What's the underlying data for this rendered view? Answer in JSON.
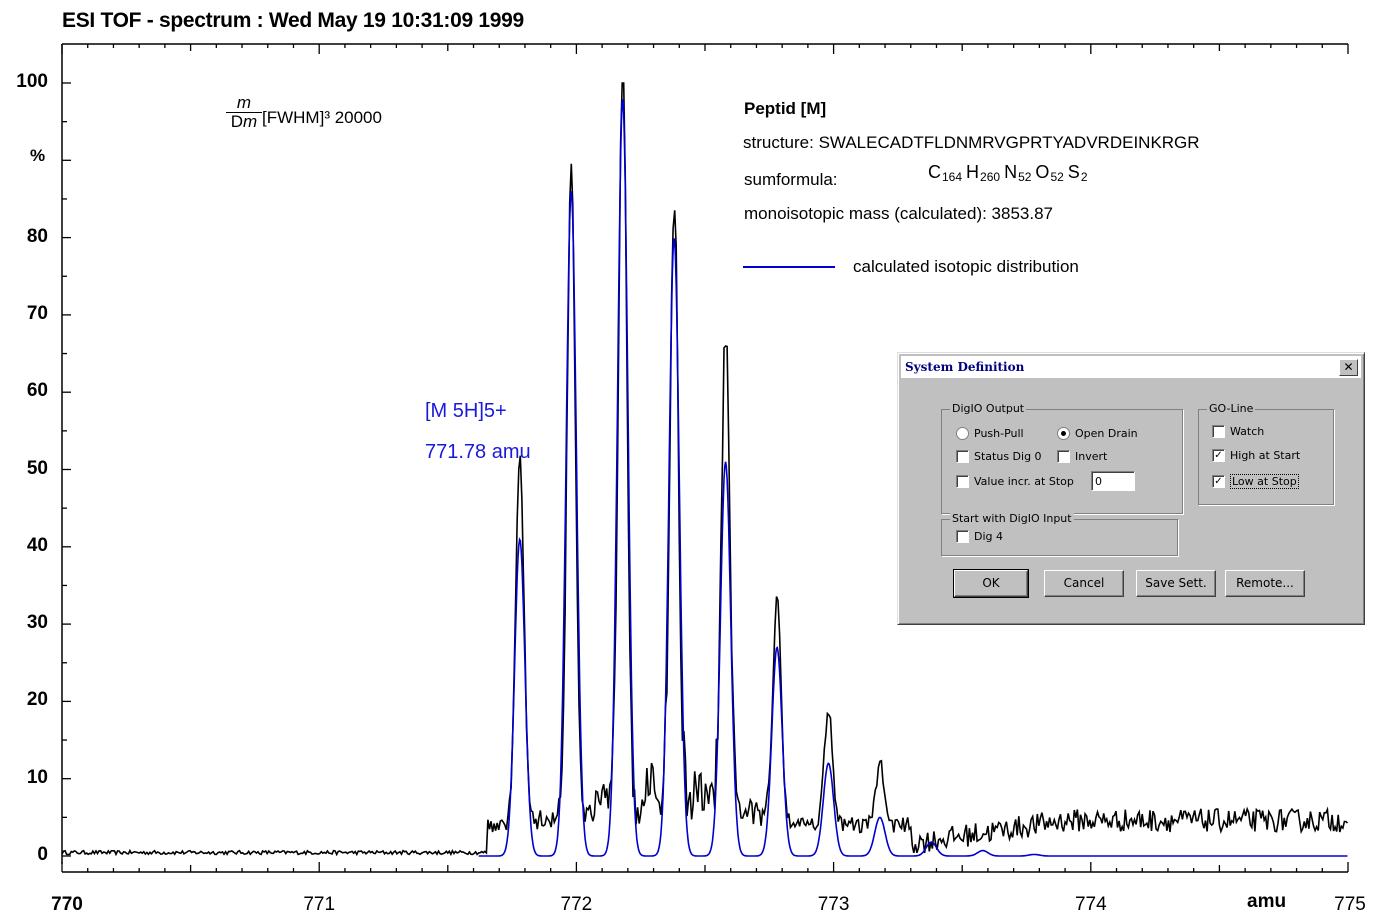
{
  "chart_data": {
    "type": "line",
    "title": "ESI TOF - spectrum :  Wed May 19 10:31:09 1999",
    "xlabel": "amu",
    "ylabel": "%",
    "xlim": [
      770,
      775
    ],
    "ylim": [
      0,
      100
    ],
    "x_ticks": [
      "770",
      "771",
      "772",
      "773",
      "774",
      "775"
    ],
    "y_ticks": [
      "0",
      "10",
      "20",
      "30",
      "40",
      "50",
      "60",
      "70",
      "80",
      "90",
      "100"
    ],
    "series": [
      {
        "role": "measured",
        "color": "#000000",
        "peaks": [
          {
            "x": 771.78,
            "y": 48
          },
          {
            "x": 771.98,
            "y": 85
          },
          {
            "x": 772.18,
            "y": 100
          },
          {
            "x": 772.38,
            "y": 77
          },
          {
            "x": 772.58,
            "y": 61
          },
          {
            "x": 772.78,
            "y": 29
          },
          {
            "x": 772.98,
            "y": 15
          },
          {
            "x": 773.18,
            "y": 8
          }
        ],
        "baseline_low": 0.5,
        "baseline_high": 4
      },
      {
        "name": "calculated isotopic distribution",
        "color": "#0000d0",
        "peaks": [
          {
            "x": 771.78,
            "y": 41
          },
          {
            "x": 771.98,
            "y": 86
          },
          {
            "x": 772.18,
            "y": 98
          },
          {
            "x": 772.38,
            "y": 80
          },
          {
            "x": 772.58,
            "y": 51
          },
          {
            "x": 772.78,
            "y": 27
          },
          {
            "x": 772.98,
            "y": 12
          },
          {
            "x": 773.18,
            "y": 5
          },
          {
            "x": 773.38,
            "y": 1.8
          },
          {
            "x": 773.58,
            "y": 0.7
          },
          {
            "x": 773.78,
            "y": 0.2
          }
        ]
      }
    ],
    "annotations": {
      "ion": "[M 5H]5+",
      "ion_mass": "771.78 amu"
    }
  },
  "resolution": {
    "num": "m",
    "den_prefix": "D",
    "den_var": "m",
    "rest": "[FWHM]³ 20000"
  },
  "peptide": {
    "heading": "Peptid [M]",
    "structure_label": "structure: SWALECADTFLDNMRVGPRTYADVRDEINKRGR",
    "sumformula_label": "sumformula:",
    "formula": [
      {
        "el": "C",
        "n": "164"
      },
      {
        "el": "H",
        "n": "260"
      },
      {
        "el": "N",
        "n": "52"
      },
      {
        "el": "O",
        "n": "52"
      },
      {
        "el": "S",
        "n": "2"
      }
    ],
    "mass_label": "monoisotopic mass (calculated):   3853.87",
    "legend_label": "calculated isotopic distribution"
  },
  "dialog": {
    "title": "System Definition",
    "close": "✕",
    "digio_group": "DigIO Output",
    "push_pull": "Push-Pull",
    "open_drain": "Open Drain",
    "status_dig": "Status Dig 0",
    "invert": "Invert",
    "value_incr": "Value incr. at Stop",
    "value_field": "0",
    "start_group": "Start with DigIO Input",
    "dig4": "Dig 4",
    "goline_group": "GO-Line",
    "watch": "Watch",
    "high_start": "High at Start",
    "low_stop": "Low at Stop",
    "check": "✓",
    "ok": "OK",
    "cancel": "Cancel",
    "save": "Save Sett.",
    "remote": "Remote..."
  }
}
